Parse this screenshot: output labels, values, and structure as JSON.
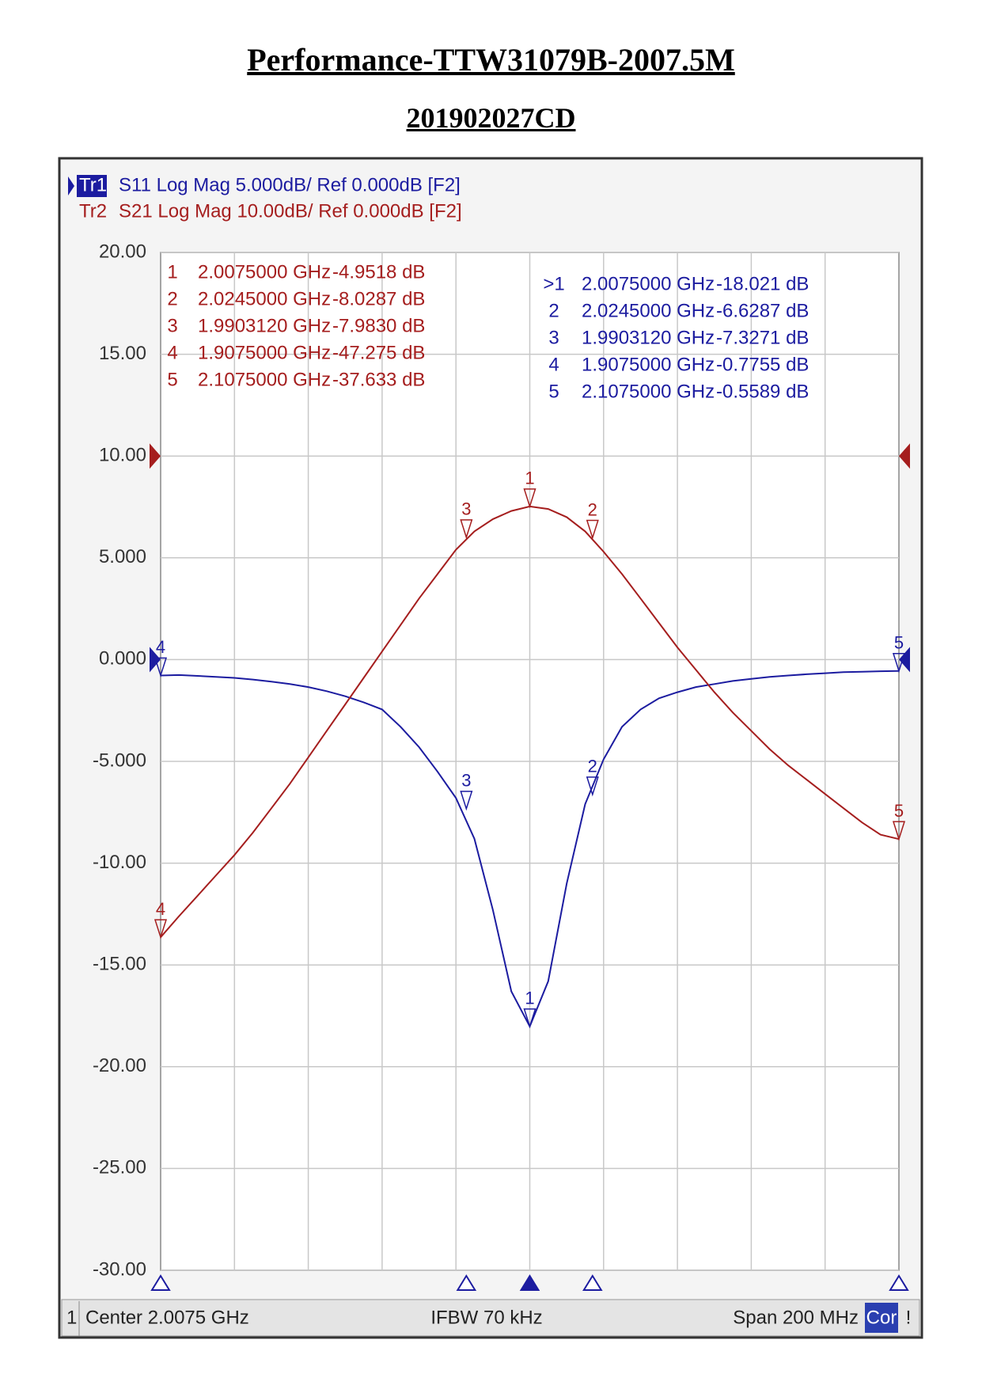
{
  "chart_data": {
    "type": "line",
    "title": "Performance-TTW31079B-2007.5M",
    "subtitle": "201902027CD",
    "x": [
      1.9075,
      1.9125,
      1.9175,
      1.9225,
      1.9275,
      1.9325,
      1.9375,
      1.9425,
      1.9475,
      1.9525,
      1.9575,
      1.9625,
      1.9675,
      1.9725,
      1.9775,
      1.9825,
      1.9875,
      1.9925,
      1.9975,
      2.0025,
      2.0075,
      2.0125,
      2.0175,
      2.0225,
      2.0275,
      2.0325,
      2.0375,
      2.0425,
      2.0475,
      2.0525,
      2.0575,
      2.0625,
      2.0675,
      2.0725,
      2.0775,
      2.0825,
      2.0875,
      2.0925,
      2.0975,
      2.1025,
      2.1075
    ],
    "xlim": [
      1.9075,
      2.1075
    ],
    "x_divisions": 10,
    "ylim": [
      -30,
      20
    ],
    "yticks": [
      {
        "value": 20,
        "label": "20.00"
      },
      {
        "value": 15,
        "label": "15.00"
      },
      {
        "value": 10,
        "label": "10.00"
      },
      {
        "value": 5,
        "label": "5.000"
      },
      {
        "value": 0,
        "label": "0.000"
      },
      {
        "value": -5,
        "label": "-5.000"
      },
      {
        "value": -10,
        "label": "-10.00"
      },
      {
        "value": -15,
        "label": "-15.00"
      },
      {
        "value": -20,
        "label": "-20.00"
      },
      {
        "value": -25,
        "label": "-25.00"
      },
      {
        "value": -30,
        "label": "-30.00"
      }
    ],
    "y2lim": [
      -80,
      20
    ],
    "grid": true,
    "series": [
      {
        "name": "Tr1",
        "header": "S11 Log Mag 5.000dB/ Ref 0.000dB [F2]",
        "color": "#1c1ca0",
        "active": true,
        "ref_level": 0,
        "values": [
          -0.78,
          -0.76,
          -0.8,
          -0.85,
          -0.9,
          -0.98,
          -1.08,
          -1.2,
          -1.35,
          -1.55,
          -1.8,
          -2.1,
          -2.45,
          -3.3,
          -4.3,
          -5.5,
          -6.8,
          -8.8,
          -12.3,
          -16.3,
          -18.02,
          -15.8,
          -11.0,
          -7.1,
          -4.9,
          -3.3,
          -2.45,
          -1.9,
          -1.6,
          -1.35,
          -1.2,
          -1.05,
          -0.95,
          -0.85,
          -0.78,
          -0.72,
          -0.67,
          -0.62,
          -0.6,
          -0.57,
          -0.56
        ],
        "markers": [
          {
            "id": "1",
            "table_id": ">1",
            "freq": {
              "value": 2.0075,
              "label": "2.0075000 GHz"
            },
            "level": {
              "value": -18.021,
              "label": "-18.021 dB"
            }
          },
          {
            "id": "2",
            "freq": {
              "value": 2.0245,
              "label": "2.0245000 GHz"
            },
            "level": {
              "value": -6.6287,
              "label": "-6.6287 dB"
            }
          },
          {
            "id": "3",
            "freq": {
              "value": 1.990312,
              "label": "1.9903120 GHz"
            },
            "level": {
              "value": -7.3271,
              "label": "-7.3271 dB"
            }
          },
          {
            "id": "4",
            "freq": {
              "value": 1.9075,
              "label": "1.9075000 GHz"
            },
            "level": {
              "value": -0.7755,
              "label": "-0.7755 dB"
            }
          },
          {
            "id": "5",
            "freq": {
              "value": 2.1075,
              "label": "2.1075000 GHz"
            },
            "level": {
              "value": -0.5589,
              "label": "-0.5589 dB"
            }
          }
        ]
      },
      {
        "name": "Tr2",
        "header": "S21 Log Mag 10.00dB/ Ref 0.000dB [F2]",
        "color": "#a51e1e",
        "axis": "y2",
        "ref_level": 0,
        "values": [
          -47.275,
          -45.2,
          -43.2,
          -41.2,
          -39.2,
          -37.0,
          -34.6,
          -32.2,
          -29.6,
          -27.0,
          -24.4,
          -21.8,
          -19.2,
          -16.6,
          -14.0,
          -11.6,
          -9.2,
          -7.4,
          -6.2,
          -5.4,
          -4.95,
          -5.2,
          -6.0,
          -7.4,
          -9.4,
          -11.6,
          -14.0,
          -16.4,
          -18.8,
          -21.0,
          -23.2,
          -25.2,
          -27.0,
          -28.8,
          -30.4,
          -31.8,
          -33.2,
          -34.6,
          -36.0,
          -37.2,
          -37.633
        ],
        "markers": [
          {
            "id": "1",
            "freq": {
              "value": 2.0075,
              "label": "2.0075000 GHz"
            },
            "level": {
              "value": -4.9518,
              "label": "-4.9518 dB"
            }
          },
          {
            "id": "2",
            "freq": {
              "value": 2.0245,
              "label": "2.0245000 GHz"
            },
            "level": {
              "value": -8.0287,
              "label": "-8.0287 dB"
            }
          },
          {
            "id": "3",
            "freq": {
              "value": 1.990312,
              "label": "1.9903120 GHz"
            },
            "level": {
              "value": -7.983,
              "label": "-7.9830 dB"
            }
          },
          {
            "id": "4",
            "freq": {
              "value": 1.9075,
              "label": "1.9075000 GHz"
            },
            "level": {
              "value": -47.275,
              "label": "-47.275 dB"
            }
          },
          {
            "id": "5",
            "freq": {
              "value": 2.1075,
              "label": "2.1075000 GHz"
            },
            "level": {
              "value": -37.633,
              "label": "-37.633 dB"
            }
          }
        ]
      }
    ],
    "footer": {
      "channel": "1",
      "center": "Center 2.0075 GHz",
      "ifbw": "IFBW 70 kHz",
      "span": "Span 200 MHz",
      "correction": "Cor",
      "status": "!"
    }
  }
}
